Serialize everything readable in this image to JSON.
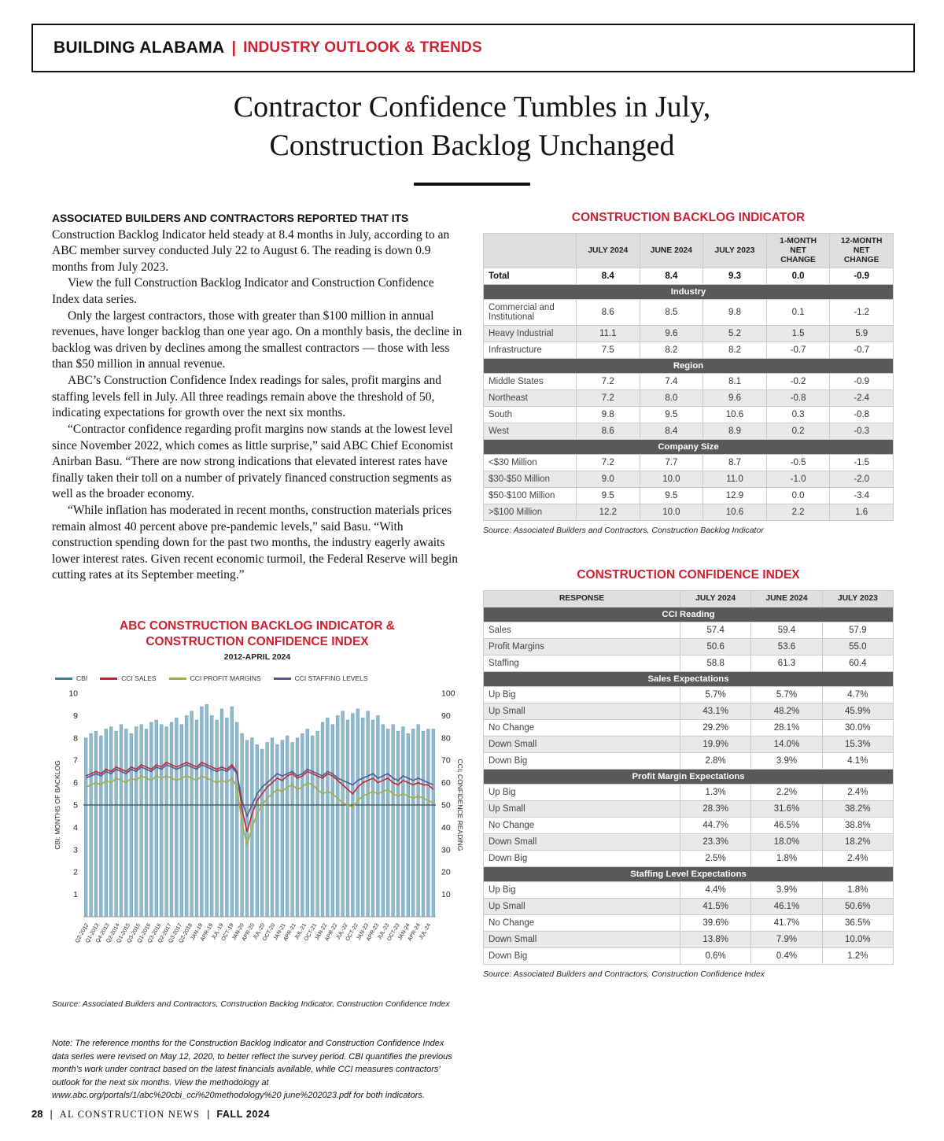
{
  "header": {
    "brand": "BUILDING ALABAMA",
    "separator": "|",
    "section": "INDUSTRY OUTLOOK & TRENDS"
  },
  "title": {
    "line1": "Contractor Confidence Tumbles in July,",
    "line2": "Construction Backlog Unchanged"
  },
  "article": {
    "lead_in": "ASSOCIATED BUILDERS AND CONTRACTORS REPORTED THAT ITS",
    "paragraphs": [
      "Construction Backlog Indicator held steady at 8.4 months in July, according to an ABC member survey conducted July 22 to August 6. The reading is down 0.9 months from July 2023.",
      "View the full Construction Backlog Indicator and Construction Confidence Index data series.",
      "Only the largest contractors, those with greater than $100 million in annual revenues, have longer backlog than one year ago. On a monthly basis, the decline in backlog was driven by declines among the smallest contractors — those with less than $50 million in annual revenue.",
      "ABC’s Construction Confidence Index readings for sales, profit margins and staffing levels fell in July. All three readings remain above the threshold of 50, indicating expectations for growth over the next six months.",
      "“Contractor confidence regarding profit margins now stands at the lowest level since November 2022, which comes as little surprise,” said ABC Chief Economist Anirban Basu. “There are now strong indications that elevated interest rates have finally taken their toll on a number of privately financed construction segments as well as the broader economy.",
      "“While inflation has moderated in recent months, construction materials prices remain almost 40 percent above pre-pandemic levels,” said Basu. “With construction spending down for the past two months, the industry eagerly awaits lower interest rates. Given recent economic turmoil, the Federal Reserve will begin cutting rates at its September meeting.”"
    ],
    "note": "Note: The reference months for the Construction Backlog Indicator and Construction Confidence Index data series were revised on May 12, 2020, to better reflect the survey period. CBI quantifies the previous month’s work under contract based on the latest financials available, while CCI measures contractors’ outlook for the next six months. View the methodology at www.abc.org/portals/1/abc%20cbi_cci%20methodology%20 june%202023.pdf for both indicators."
  },
  "backlog_table": {
    "title": "CONSTRUCTION BACKLOG INDICATOR",
    "columns": [
      "",
      "JULY 2024",
      "JUNE 2024",
      "JULY 2023",
      "1-MONTH NET CHANGE",
      "12-MONTH NET CHANGE"
    ],
    "total_row": {
      "label": "Total",
      "values": [
        "8.4",
        "8.4",
        "9.3",
        "0.0",
        "-0.9"
      ]
    },
    "sections": [
      {
        "name": "Industry",
        "rows": [
          {
            "label": "Commercial and Institutional",
            "values": [
              "8.6",
              "8.5",
              "9.8",
              "0.1",
              "-1.2"
            ]
          },
          {
            "label": "Heavy Industrial",
            "values": [
              "11.1",
              "9.6",
              "5.2",
              "1.5",
              "5.9"
            ]
          },
          {
            "label": "Infrastructure",
            "values": [
              "7.5",
              "8.2",
              "8.2",
              "-0.7",
              "-0.7"
            ]
          }
        ]
      },
      {
        "name": "Region",
        "rows": [
          {
            "label": "Middle States",
            "values": [
              "7.2",
              "7.4",
              "8.1",
              "-0.2",
              "-0.9"
            ]
          },
          {
            "label": "Northeast",
            "values": [
              "7.2",
              "8.0",
              "9.6",
              "-0.8",
              "-2.4"
            ]
          },
          {
            "label": "South",
            "values": [
              "9.8",
              "9.5",
              "10.6",
              "0.3",
              "-0.8"
            ]
          },
          {
            "label": "West",
            "values": [
              "8.6",
              "8.4",
              "8.9",
              "0.2",
              "-0.3"
            ]
          }
        ]
      },
      {
        "name": "Company Size",
        "rows": [
          {
            "label": "<$30 Million",
            "values": [
              "7.2",
              "7.7",
              "8.7",
              "-0.5",
              "-1.5"
            ]
          },
          {
            "label": "$30-$50 Million",
            "values": [
              "9.0",
              "10.0",
              "11.0",
              "-1.0",
              "-2.0"
            ]
          },
          {
            "label": "$50-$100 Million",
            "values": [
              "9.5",
              "9.5",
              "12.9",
              "0.0",
              "-3.4"
            ]
          },
          {
            "label": ">$100 Million",
            "values": [
              "12.2",
              "10.0",
              "10.6",
              "2.2",
              "1.6"
            ]
          }
        ]
      }
    ],
    "source": "Source: Associated Builders and Contractors, Construction Backlog Indicator"
  },
  "cci_table": {
    "title": "CONSTRUCTION CONFIDENCE INDEX",
    "columns": [
      "RESPONSE",
      "JULY 2024",
      "JUNE 2024",
      "JULY 2023"
    ],
    "sections": [
      {
        "name": "CCI Reading",
        "rows": [
          {
            "label": "Sales",
            "values": [
              "57.4",
              "59.4",
              "57.9"
            ]
          },
          {
            "label": "Profit Margins",
            "values": [
              "50.6",
              "53.6",
              "55.0"
            ]
          },
          {
            "label": "Staffing",
            "values": [
              "58.8",
              "61.3",
              "60.4"
            ]
          }
        ]
      },
      {
        "name": "Sales Expectations",
        "rows": [
          {
            "label": "Up Big",
            "values": [
              "5.7%",
              "5.7%",
              "4.7%"
            ]
          },
          {
            "label": "Up Small",
            "values": [
              "43.1%",
              "48.2%",
              "45.9%"
            ]
          },
          {
            "label": "No Change",
            "values": [
              "29.2%",
              "28.1%",
              "30.0%"
            ]
          },
          {
            "label": "Down Small",
            "values": [
              "19.9%",
              "14.0%",
              "15.3%"
            ]
          },
          {
            "label": "Down Big",
            "values": [
              "2.8%",
              "3.9%",
              "4.1%"
            ]
          }
        ]
      },
      {
        "name": "Profit Margin Expectations",
        "rows": [
          {
            "label": "Up Big",
            "values": [
              "1.3%",
              "2.2%",
              "2.4%"
            ]
          },
          {
            "label": "Up Small",
            "values": [
              "28.3%",
              "31.6%",
              "38.2%"
            ]
          },
          {
            "label": "No Change",
            "values": [
              "44.7%",
              "46.5%",
              "38.8%"
            ]
          },
          {
            "label": "Down Small",
            "values": [
              "23.3%",
              "18.0%",
              "18.2%"
            ]
          },
          {
            "label": "Down Big",
            "values": [
              "2.5%",
              "1.8%",
              "2.4%"
            ]
          }
        ]
      },
      {
        "name": "Staffing Level Expectations",
        "rows": [
          {
            "label": "Up Big",
            "values": [
              "4.4%",
              "3.9%",
              "1.8%"
            ]
          },
          {
            "label": "Up Small",
            "values": [
              "41.5%",
              "46.1%",
              "50.6%"
            ]
          },
          {
            "label": "No Change",
            "values": [
              "39.6%",
              "41.7%",
              "36.5%"
            ]
          },
          {
            "label": "Down Small",
            "values": [
              "13.8%",
              "7.9%",
              "10.0%"
            ]
          },
          {
            "label": "Down Big",
            "values": [
              "0.6%",
              "0.4%",
              "1.2%"
            ]
          }
        ]
      }
    ],
    "source": "Source: Associated Builders and Contractors, Construction Confidence Index"
  },
  "chart_data": {
    "type": "bar+line",
    "title_line1": "ABC CONSTRUCTION BACKLOG INDICATOR &",
    "title_line2": "CONSTRUCTION CONFIDENCE INDEX",
    "subtitle": "2012-APRIL 2024",
    "source": "Source: Associated Builders and Contractors, Construction Backlog Indicator, Construction Confidence Index",
    "y_left": {
      "label": "CBI: MONTHS OF BACKLOG",
      "min": 0,
      "max": 10,
      "ticks": [
        1,
        2,
        3,
        4,
        5,
        6,
        7,
        8,
        9,
        10
      ]
    },
    "y_right": {
      "label": "CCI: CONFIDENCE READING",
      "min": 0,
      "max": 100,
      "ticks": [
        10,
        20,
        30,
        40,
        50,
        60,
        70,
        80,
        90,
        100
      ]
    },
    "threshold": 50,
    "bar_color": "#8fb9ce",
    "bar_stroke": "#5d93ad",
    "legend": [
      {
        "label": "CBI",
        "color": "#3d7e9a"
      },
      {
        "label": "CCI SALES",
        "color": "#c1272d"
      },
      {
        "label": "CCI PROFIT MARGINS",
        "color": "#a6ad3a"
      },
      {
        "label": "CCI STAFFING LEVELS",
        "color": "#55588f"
      }
    ],
    "x_tick_labels": [
      "Q2-2012",
      "Q1-2013",
      "Q4-2013",
      "Q2-2014",
      "Q1-2015",
      "Q3-2015",
      "Q1-2016",
      "Q3-2016",
      "Q2-2017",
      "Q3-2017",
      "Q2-2018",
      "JAN-19",
      "APR-19",
      "JUL-19",
      "OCT-19",
      "JAN-20",
      "APR-20",
      "JUL-20",
      "OCT-20",
      "JAN-21",
      "APR-21",
      "JUL-21",
      "OCT-21",
      "JAN-22",
      "APR-22",
      "JUL-22",
      "OCT-22",
      "JAN-23",
      "APR-23",
      "JUL-23",
      "OCT-23",
      "JAN-24",
      "APR-24",
      "JUL-24"
    ],
    "cbi_values": [
      8.0,
      8.2,
      8.3,
      8.1,
      8.4,
      8.5,
      8.3,
      8.6,
      8.4,
      8.2,
      8.5,
      8.6,
      8.4,
      8.7,
      8.8,
      8.6,
      8.5,
      8.7,
      8.9,
      8.6,
      9.0,
      9.2,
      8.8,
      9.4,
      9.5,
      9.0,
      8.8,
      9.3,
      8.9,
      9.4,
      8.7,
      8.2,
      7.9,
      8.0,
      7.7,
      7.5,
      7.8,
      8.0,
      7.7,
      7.9,
      8.1,
      7.8,
      8.0,
      8.2,
      8.4,
      8.1,
      8.3,
      8.7,
      8.9,
      8.6,
      9.0,
      9.2,
      8.8,
      9.1,
      9.3,
      8.9,
      9.2,
      8.8,
      9.0,
      8.6,
      8.4,
      8.6,
      8.3,
      8.5,
      8.2,
      8.4,
      8.6,
      8.3,
      8.4,
      8.4
    ],
    "series": [
      {
        "name": "CCI SALES",
        "color": "#c1272d",
        "values": [
          63,
          64,
          65,
          64,
          66,
          65,
          67,
          66,
          65,
          67,
          66,
          68,
          67,
          66,
          68,
          67,
          69,
          68,
          67,
          68,
          69,
          68,
          67,
          69,
          68,
          67,
          66,
          67,
          66,
          68,
          65,
          48,
          38,
          46,
          52,
          55,
          58,
          60,
          62,
          61,
          63,
          64,
          62,
          63,
          65,
          64,
          63,
          62,
          64,
          63,
          61,
          59,
          57,
          55,
          58,
          60,
          61,
          62,
          60,
          61,
          62,
          60,
          59,
          61,
          60,
          59,
          60,
          59,
          59,
          57
        ]
      },
      {
        "name": "CCI PROFIT MARGINS",
        "color": "#a6ad3a",
        "values": [
          58,
          59,
          60,
          59,
          61,
          60,
          62,
          61,
          60,
          62,
          61,
          63,
          62,
          61,
          63,
          62,
          63,
          62,
          61,
          62,
          63,
          62,
          61,
          63,
          62,
          61,
          60,
          61,
          60,
          62,
          58,
          42,
          32,
          40,
          46,
          50,
          53,
          55,
          57,
          56,
          58,
          59,
          57,
          58,
          60,
          59,
          57,
          55,
          56,
          55,
          53,
          51,
          50,
          49,
          52,
          54,
          55,
          56,
          55,
          56,
          57,
          55,
          54,
          55,
          54,
          53,
          54,
          53,
          52,
          51
        ]
      },
      {
        "name": "CCI STAFFING LEVELS",
        "color": "#55588f",
        "values": [
          62,
          63,
          64,
          63,
          65,
          64,
          66,
          65,
          64,
          66,
          65,
          67,
          66,
          65,
          67,
          66,
          68,
          67,
          66,
          67,
          68,
          67,
          66,
          68,
          67,
          66,
          65,
          66,
          65,
          67,
          64,
          52,
          45,
          50,
          55,
          58,
          60,
          62,
          64,
          63,
          64,
          65,
          63,
          64,
          66,
          65,
          64,
          63,
          65,
          64,
          62,
          61,
          60,
          59,
          61,
          62,
          63,
          64,
          62,
          63,
          64,
          62,
          61,
          63,
          62,
          61,
          62,
          61,
          60,
          59
        ]
      }
    ]
  },
  "footer": {
    "page_number": "28",
    "separator": "|",
    "publication": "AL CONSTRUCTION NEWS",
    "issue": "FALL 2024"
  }
}
